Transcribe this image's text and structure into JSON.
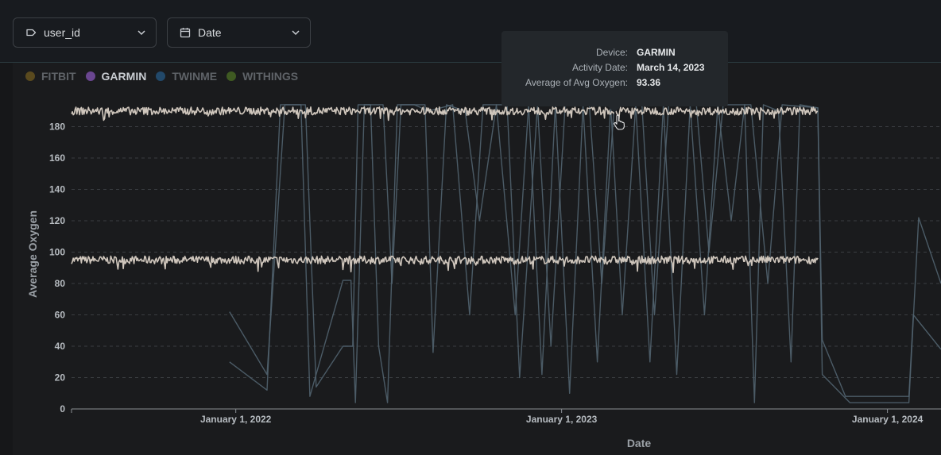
{
  "filters": {
    "user": {
      "label": "user_id",
      "icon": "tag-icon"
    },
    "date": {
      "label": "Date",
      "icon": "calendar-icon"
    }
  },
  "legend": {
    "items": [
      {
        "label": "FITBIT",
        "color": "#5a4a1e",
        "active": false
      },
      {
        "label": "GARMIN",
        "color": "#6a4690",
        "active": true
      },
      {
        "label": "TWINME",
        "color": "#22496a",
        "active": false
      },
      {
        "label": "WITHINGS",
        "color": "#3f5a22",
        "active": false
      }
    ]
  },
  "tooltip": {
    "rows": [
      {
        "key": "Device:",
        "value": "GARMIN"
      },
      {
        "key": "Activity Date:",
        "value": "March 14, 2023"
      },
      {
        "key": "Average of Avg Oxygen:",
        "value": "93.36"
      }
    ]
  },
  "chart_data": {
    "type": "line",
    "xlabel": "Date",
    "ylabel": "Average Oxygen",
    "ylim": [
      0,
      200
    ],
    "yticks": [
      0,
      20,
      40,
      60,
      80,
      100,
      120,
      140,
      160,
      180
    ],
    "xlim": [
      "2021-07-01",
      "2024-03-01"
    ],
    "xticks": [
      {
        "date": "2022-01-01",
        "label": "January 1, 2022"
      },
      {
        "date": "2023-01-01",
        "label": "January 1, 2023"
      },
      {
        "date": "2024-01-01",
        "label": "January 1, 2024"
      }
    ],
    "grid": "horizontal-dashed",
    "legend_position": "top-left",
    "series": [
      {
        "name": "GARMIN",
        "color": "#cfc6bc",
        "date_range": [
          "2021-07-01",
          "2024-03-31"
        ],
        "level": 95,
        "variation": 2.5,
        "segments": [
          {
            "start": "2021-07-01",
            "end": "2023-10-15",
            "offset": 0
          },
          {
            "start": "2021-07-01",
            "end": "2023-10-15",
            "offset": 95
          }
        ]
      },
      {
        "name": "TWINME",
        "color": "#51636f",
        "points": [
          [
            "2021-12-25",
            62
          ],
          [
            "2022-02-05",
            22
          ],
          [
            "2022-02-25",
            194
          ],
          [
            "2022-03-15",
            194
          ],
          [
            "2022-03-25",
            8
          ],
          [
            "2022-05-01",
            82
          ],
          [
            "2022-05-10",
            82
          ],
          [
            "2022-05-15",
            4
          ],
          [
            "2022-05-25",
            194
          ],
          [
            "2022-06-01",
            194
          ],
          [
            "2022-06-10",
            40
          ],
          [
            "2022-06-20",
            4
          ],
          [
            "2022-07-01",
            194
          ],
          [
            "2022-08-01",
            194
          ],
          [
            "2022-08-10",
            36
          ],
          [
            "2022-08-25",
            194
          ],
          [
            "2022-09-15",
            190
          ],
          [
            "2022-10-01",
            120
          ],
          [
            "2022-10-20",
            194
          ],
          [
            "2022-11-10",
            60
          ],
          [
            "2022-11-25",
            194
          ],
          [
            "2022-12-10",
            22
          ],
          [
            "2022-12-25",
            194
          ],
          [
            "2023-01-10",
            10
          ],
          [
            "2023-01-25",
            194
          ],
          [
            "2023-02-10",
            30
          ],
          [
            "2023-02-25",
            194
          ],
          [
            "2023-03-10",
            60
          ],
          [
            "2023-03-25",
            194
          ],
          [
            "2023-04-10",
            30
          ],
          [
            "2023-04-25",
            194
          ],
          [
            "2023-05-10",
            22
          ],
          [
            "2023-05-25",
            194
          ],
          [
            "2023-06-10",
            60
          ],
          [
            "2023-06-25",
            194
          ],
          [
            "2023-07-10",
            120
          ],
          [
            "2023-07-25",
            194
          ],
          [
            "2023-08-05",
            4
          ],
          [
            "2023-08-15",
            194
          ],
          [
            "2023-09-01",
            190
          ],
          [
            "2023-09-15",
            30
          ],
          [
            "2023-09-25",
            194
          ],
          [
            "2023-10-15",
            192
          ],
          [
            "2023-10-20",
            44
          ],
          [
            "2023-11-15",
            8
          ],
          [
            "2024-01-25",
            8
          ],
          [
            "2024-01-30",
            60
          ],
          [
            "2024-03-01",
            38
          ]
        ]
      },
      {
        "name": "TWINME",
        "color": "#51636f",
        "points": [
          [
            "2021-12-25",
            30
          ],
          [
            "2022-02-05",
            12
          ],
          [
            "2022-02-20",
            194
          ],
          [
            "2022-03-20",
            194
          ],
          [
            "2022-04-01",
            14
          ],
          [
            "2022-05-01",
            40
          ],
          [
            "2022-05-12",
            40
          ],
          [
            "2022-05-18",
            194
          ],
          [
            "2022-06-15",
            194
          ],
          [
            "2022-06-25",
            80
          ],
          [
            "2022-07-05",
            194
          ],
          [
            "2022-07-20",
            194
          ],
          [
            "2022-08-05",
            190
          ],
          [
            "2022-09-01",
            194
          ],
          [
            "2022-09-20",
            60
          ],
          [
            "2022-10-05",
            194
          ],
          [
            "2022-11-01",
            194
          ],
          [
            "2022-11-15",
            20
          ],
          [
            "2022-12-05",
            194
          ],
          [
            "2022-12-20",
            40
          ],
          [
            "2023-01-05",
            194
          ],
          [
            "2023-02-01",
            194
          ],
          [
            "2023-02-15",
            80
          ],
          [
            "2023-03-01",
            194
          ],
          [
            "2023-04-01",
            194
          ],
          [
            "2023-04-15",
            60
          ],
          [
            "2023-05-01",
            194
          ],
          [
            "2023-06-01",
            194
          ],
          [
            "2023-06-15",
            100
          ],
          [
            "2023-07-01",
            194
          ],
          [
            "2023-08-01",
            194
          ],
          [
            "2023-08-20",
            80
          ],
          [
            "2023-09-05",
            194
          ],
          [
            "2023-10-15",
            192
          ],
          [
            "2023-10-20",
            22
          ],
          [
            "2023-11-20",
            4
          ],
          [
            "2024-01-25",
            4
          ],
          [
            "2024-02-05",
            122
          ],
          [
            "2024-03-01",
            80
          ]
        ]
      }
    ]
  }
}
